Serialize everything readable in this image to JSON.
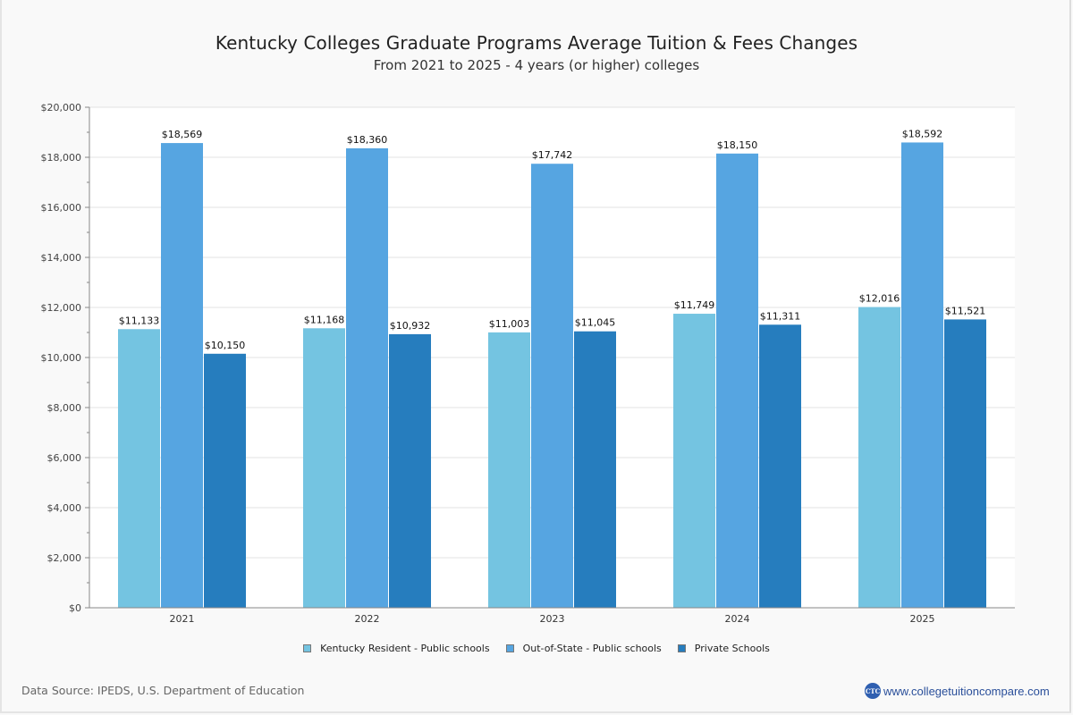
{
  "chart_data": {
    "type": "bar",
    "title": "Kentucky Colleges Graduate Programs Average Tuition & Fees Changes",
    "subtitle": "From 2021 to 2025 - 4 years (or higher) colleges",
    "xlabel": "",
    "ylabel": "",
    "categories": [
      "2021",
      "2022",
      "2023",
      "2024",
      "2025"
    ],
    "series": [
      {
        "name": "Kentucky Resident - Public schools",
        "color": "#74c4e1",
        "values": [
          11133,
          11168,
          11003,
          11749,
          12016
        ],
        "labels": [
          "$11,133",
          "$11,168",
          "$11,003",
          "$11,749",
          "$12,016"
        ]
      },
      {
        "name": "Out-of-State - Public schools",
        "color": "#56a5e1",
        "values": [
          18569,
          18360,
          17742,
          18150,
          18592
        ],
        "labels": [
          "$18,569",
          "$18,360",
          "$17,742",
          "$18,150",
          "$18,592"
        ]
      },
      {
        "name": "Private Schools",
        "color": "#267dbe",
        "values": [
          10150,
          10932,
          11045,
          11311,
          11521
        ],
        "labels": [
          "$10,150",
          "$10,932",
          "$11,045",
          "$11,311",
          "$11,521"
        ]
      }
    ],
    "ylim": [
      0,
      20000
    ],
    "yticks": [
      0,
      2000,
      4000,
      6000,
      8000,
      10000,
      12000,
      14000,
      16000,
      18000,
      20000
    ],
    "ytick_labels": [
      "$0",
      "$2,000",
      "$4,000",
      "$6,000",
      "$8,000",
      "$10,000",
      "$12,000",
      "$14,000",
      "$16,000",
      "$18,000",
      "$20,000"
    ],
    "grid": true,
    "legend_position": "bottom-center"
  },
  "footer": {
    "source": "Data Source: IPEDS, U.S. Department of Education",
    "brand_logo": "CTC",
    "brand_url": "www.collegetuitioncompare.com"
  }
}
